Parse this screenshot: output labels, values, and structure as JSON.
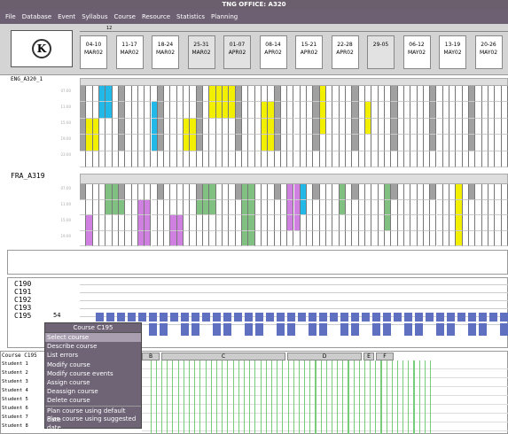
{
  "window": {
    "title": "TNG OFFICE: A320"
  },
  "menu": [
    "File",
    "Database",
    "Event",
    "Syllabus",
    "Course",
    "Resource",
    "Statistics",
    "Planning"
  ],
  "slider_label": "12",
  "weeks": [
    {
      "range": "04-10",
      "month": "MAR02",
      "shade": "w"
    },
    {
      "range": "11-17",
      "month": "MAR02",
      "shade": "w"
    },
    {
      "range": "18-24",
      "month": "MAR02",
      "shade": "w"
    },
    {
      "range": "25-31",
      "month": "MAR02",
      "shade": "g"
    },
    {
      "range": "01-07",
      "month": "APR02",
      "shade": "g"
    },
    {
      "range": "08-14",
      "month": "APR02",
      "shade": "w"
    },
    {
      "range": "15-21",
      "month": "APR02",
      "shade": "w"
    },
    {
      "range": "22-28",
      "month": "APR02",
      "shade": "w"
    },
    {
      "range": "29-05",
      "month": "",
      "shade": "g"
    },
    {
      "range": "06-12",
      "month": "MAY02",
      "shade": "w"
    },
    {
      "range": "13-19",
      "month": "MAY02",
      "shade": "w"
    },
    {
      "range": "20-26",
      "month": "MAY02",
      "shade": "w"
    }
  ],
  "section1": {
    "label": "ENG_A320_1",
    "rows": [
      "07:00",
      "11:00",
      "15:00",
      "19:00",
      "23:00"
    ]
  },
  "section2": {
    "label": "FRA_A319",
    "rows": [
      "07:00",
      "11:00",
      "15:00",
      "19:00"
    ]
  },
  "courses": [
    {
      "name": "C190",
      "count": ""
    },
    {
      "name": "C191",
      "count": ""
    },
    {
      "name": "C192",
      "count": ""
    },
    {
      "name": "C193",
      "count": ""
    },
    {
      "name": "C195",
      "count": "54"
    }
  ],
  "course_panel_label": "Course C195",
  "course_bars": [
    "B",
    "C",
    "D",
    "E",
    "F"
  ],
  "students": [
    "Student 1",
    "Student 2",
    "Student 3",
    "Student 4",
    "Student 5",
    "Student 6",
    "Student 7",
    "Student 8"
  ],
  "context_menu": {
    "title": "Course C195",
    "items": [
      {
        "label": "Select course",
        "selected": true,
        "sep": false
      },
      {
        "label": "Describe course",
        "selected": false,
        "sep": false
      },
      {
        "label": "List errors",
        "selected": false,
        "sep": false
      },
      {
        "label": "Modify course",
        "selected": false,
        "sep": false
      },
      {
        "label": "Modify course events",
        "selected": false,
        "sep": false
      },
      {
        "label": "Assign course",
        "selected": false,
        "sep": false
      },
      {
        "label": "Deassign course",
        "selected": false,
        "sep": false
      },
      {
        "label": "Delete course",
        "selected": false,
        "sep": false
      },
      {
        "label": "Plan course using default date",
        "selected": false,
        "sep": true
      },
      {
        "label": "Plan course using suggested date",
        "selected": false,
        "sep": false
      }
    ]
  },
  "colors": {
    "yellow": "#f2f000",
    "cyan": "#22b8e8",
    "green": "#80c080",
    "magenta": "#d080e0",
    "gray": "#a0a0a0",
    "blue": "#6070c0"
  }
}
